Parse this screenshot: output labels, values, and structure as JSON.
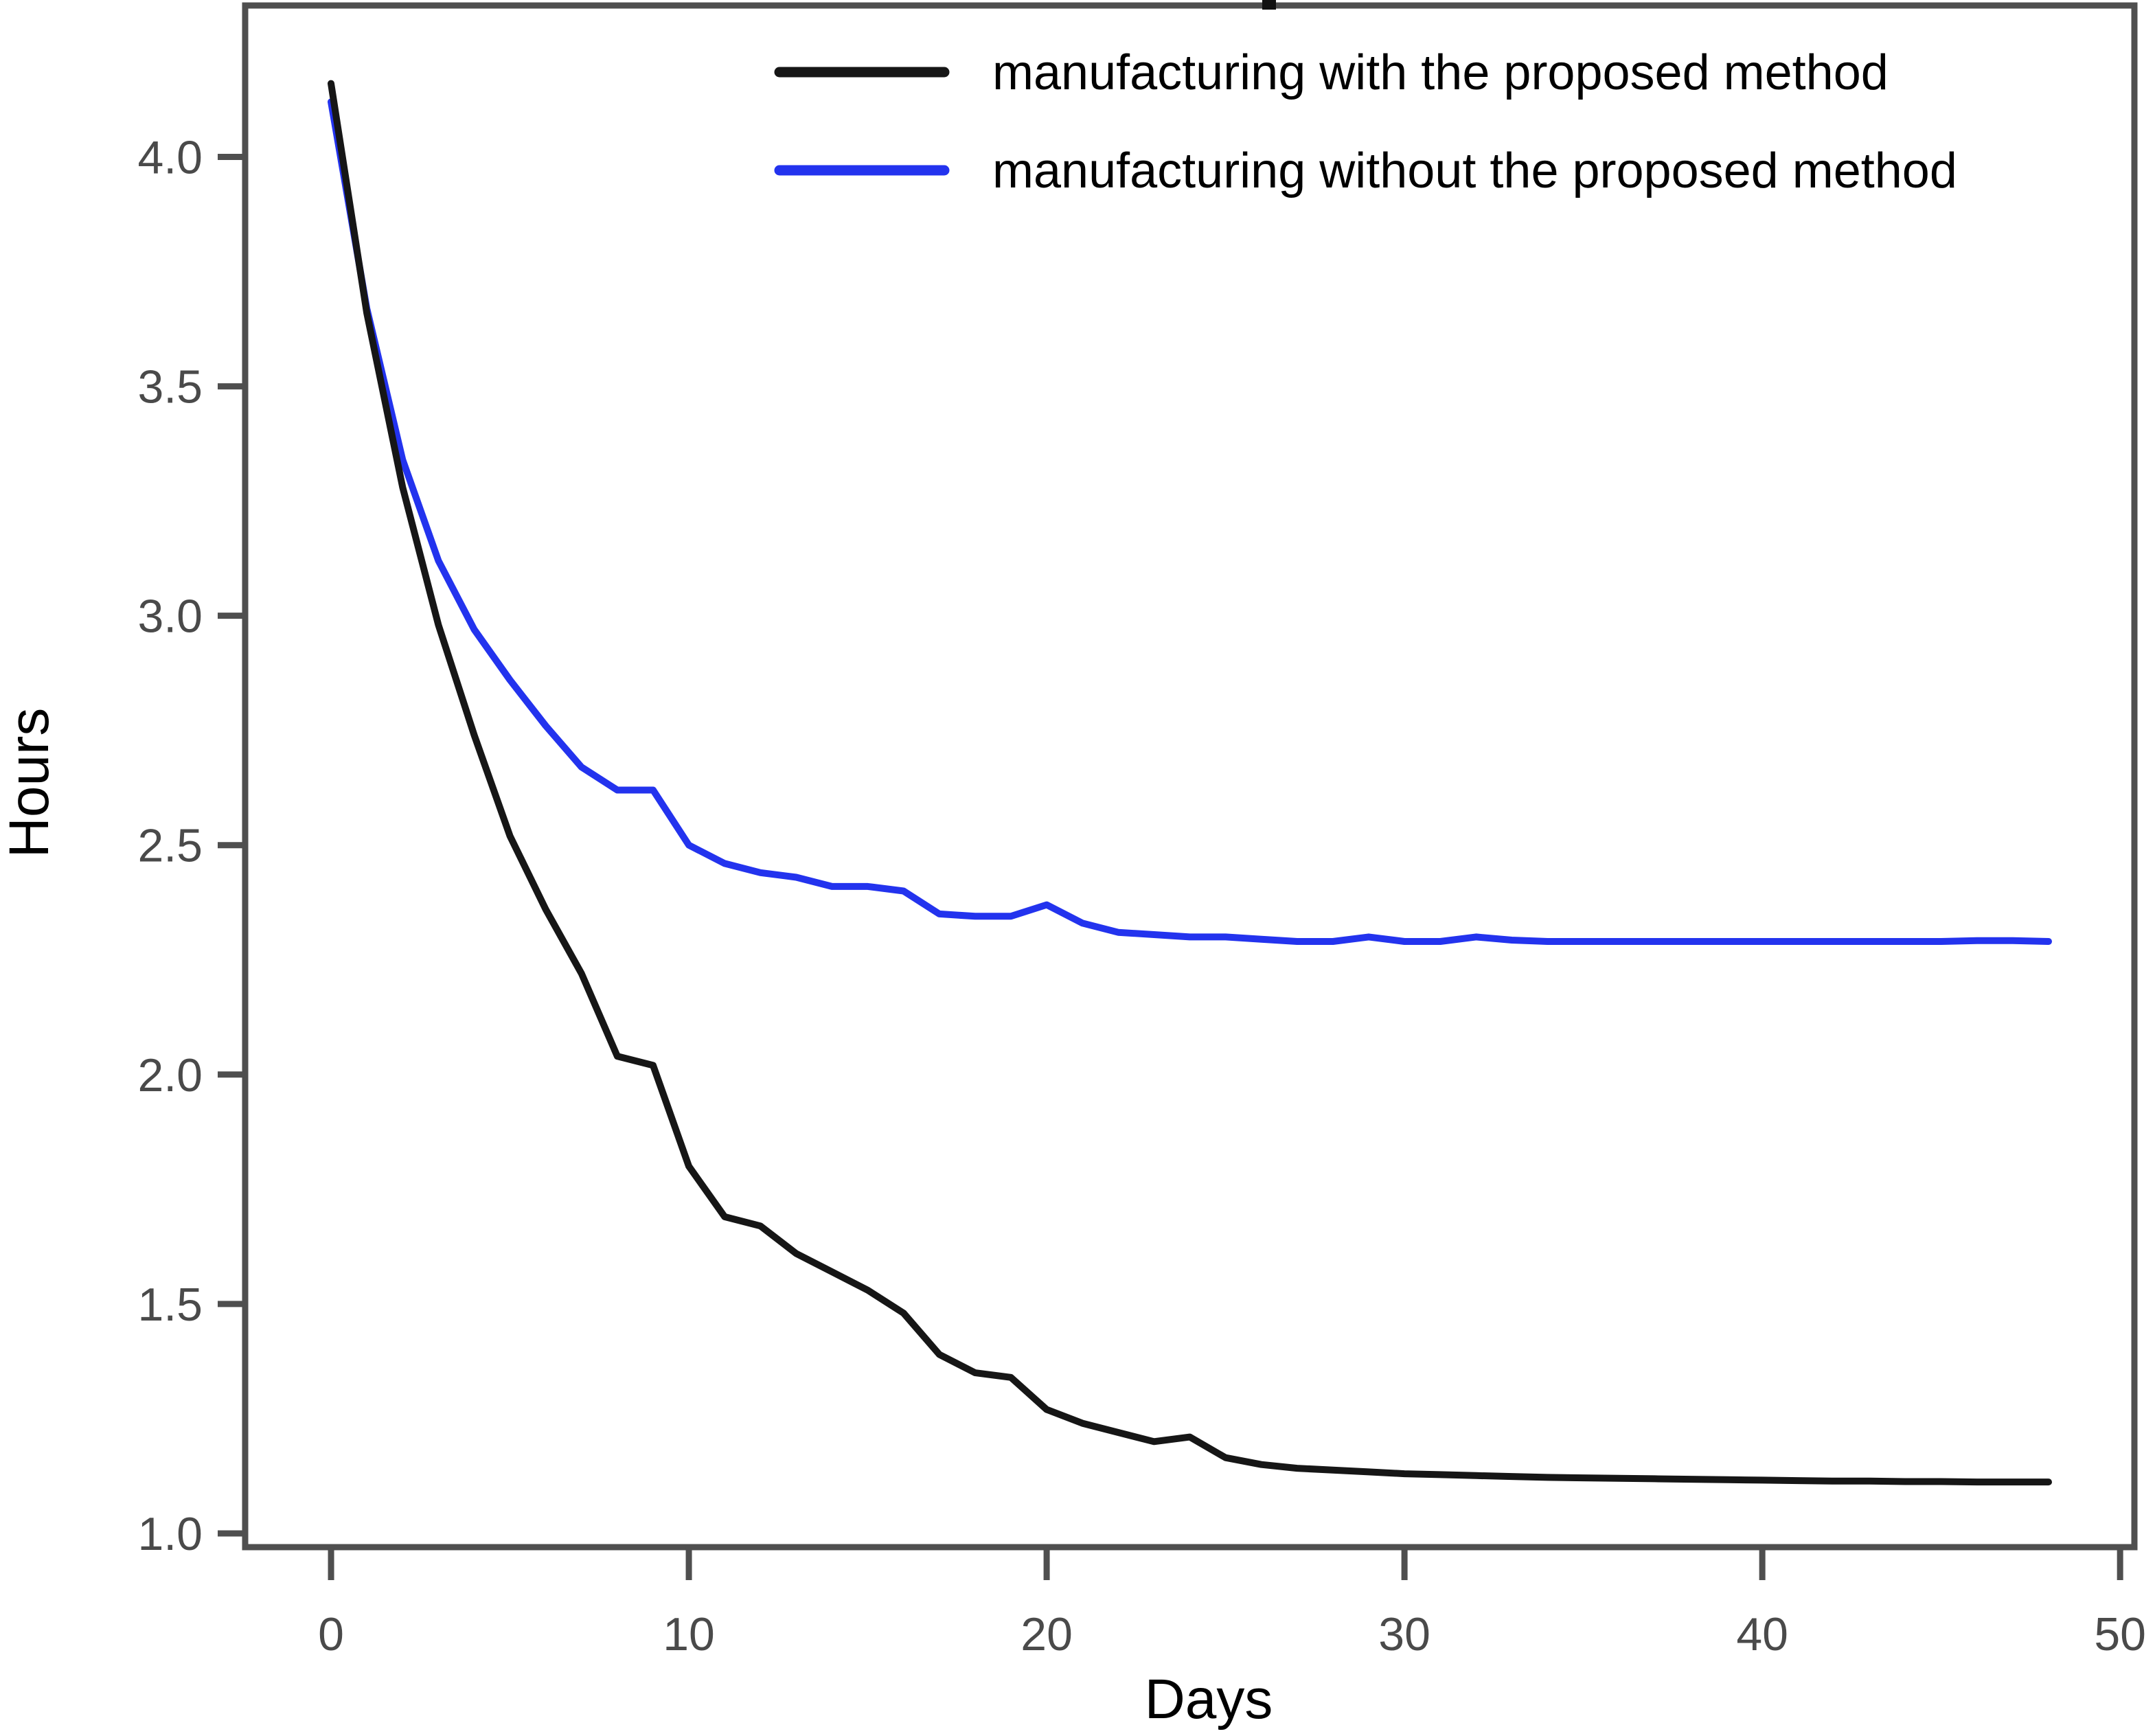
{
  "figure": {
    "y_axis": {
      "label": "Hours"
    },
    "x_axis": {
      "label": "Days"
    },
    "legend": [
      {
        "label": "manufacturing with the proposed method",
        "color": "#161616"
      },
      {
        "label": "manufacturing without the proposed method",
        "color": "#2333ee"
      }
    ]
  },
  "chart_data": {
    "type": "line",
    "title": "",
    "xlabel": "Days",
    "ylabel": "Hours",
    "x": [
      0,
      1,
      2,
      3,
      4,
      5,
      6,
      7,
      8,
      9,
      10,
      11,
      12,
      13,
      14,
      15,
      16,
      17,
      18,
      19,
      20,
      21,
      22,
      23,
      24,
      25,
      26,
      27,
      28,
      29,
      30,
      31,
      32,
      33,
      34,
      35,
      36,
      37,
      38,
      39,
      40,
      41,
      42,
      43,
      44,
      45,
      46,
      47,
      48
    ],
    "series": [
      {
        "name": "manufacturing with the proposed method",
        "color": "#161616",
        "values": [
          4.16,
          3.66,
          3.28,
          2.98,
          2.74,
          2.52,
          2.36,
          2.22,
          2.04,
          2.02,
          1.8,
          1.69,
          1.67,
          1.61,
          1.57,
          1.53,
          1.48,
          1.39,
          1.35,
          1.34,
          1.27,
          1.24,
          1.22,
          1.2,
          1.21,
          1.165,
          1.15,
          1.142,
          1.138,
          1.134,
          1.13,
          1.128,
          1.126,
          1.124,
          1.122,
          1.121,
          1.12,
          1.119,
          1.118,
          1.117,
          1.116,
          1.115,
          1.114,
          1.114,
          1.113,
          1.113,
          1.112,
          1.112,
          1.112
        ]
      },
      {
        "name": "manufacturing without the proposed method",
        "color": "#2333ee",
        "values": [
          4.12,
          3.67,
          3.34,
          3.12,
          2.97,
          2.86,
          2.76,
          2.67,
          2.62,
          2.62,
          2.5,
          2.46,
          2.44,
          2.43,
          2.41,
          2.41,
          2.4,
          2.35,
          2.345,
          2.345,
          2.37,
          2.33,
          2.31,
          2.305,
          2.3,
          2.3,
          2.295,
          2.29,
          2.29,
          2.3,
          2.29,
          2.29,
          2.3,
          2.293,
          2.29,
          2.29,
          2.29,
          2.29,
          2.29,
          2.29,
          2.29,
          2.29,
          2.29,
          2.29,
          2.29,
          2.29,
          2.292,
          2.292,
          2.29
        ]
      }
    ],
    "xlim": [
      -2.4,
      50.4
    ],
    "ylim": [
      0.97,
      4.33
    ],
    "x_ticks": [
      0,
      10,
      20,
      30,
      40,
      50
    ],
    "y_ticks": [
      1.0,
      1.5,
      2.0,
      2.5,
      3.0,
      3.5,
      4.0
    ],
    "y_tick_labels": [
      "1.0",
      "1.5",
      "2.0",
      "2.5",
      "3.0",
      "3.5",
      "4.0"
    ],
    "x_tick_labels": [
      "0",
      "10",
      "20",
      "30",
      "40",
      "50"
    ],
    "grid": false,
    "legend_position": "upper center",
    "frame_color": "#4f4f4f"
  }
}
